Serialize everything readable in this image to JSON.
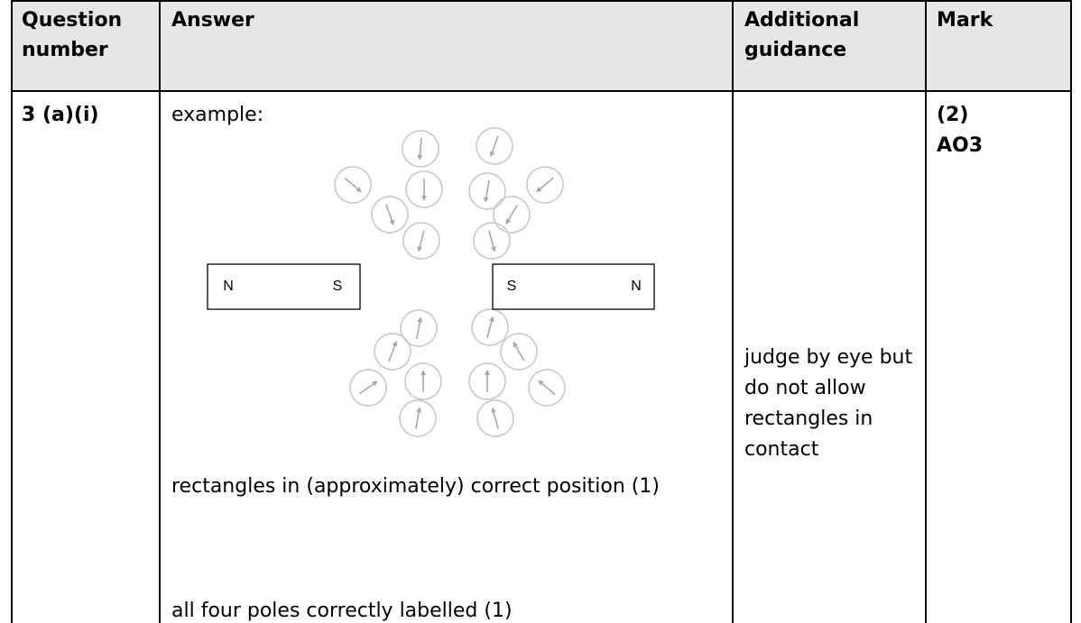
{
  "table": {
    "header": [
      "Question number",
      "Answer",
      "Additional guidance",
      "Mark"
    ],
    "row": {
      "question": "3 (a)(i)",
      "answer_intro": "example:",
      "poles": [
        "N",
        "S",
        "S",
        "N"
      ],
      "answer_points": [
        "rectangles in (approximately) correct position (1)",
        "all four poles correctly labelled (1)"
      ],
      "guidance": "judge by eye but do not allow rectangles in contact",
      "mark": [
        "(2)",
        "AO3"
      ]
    }
  }
}
